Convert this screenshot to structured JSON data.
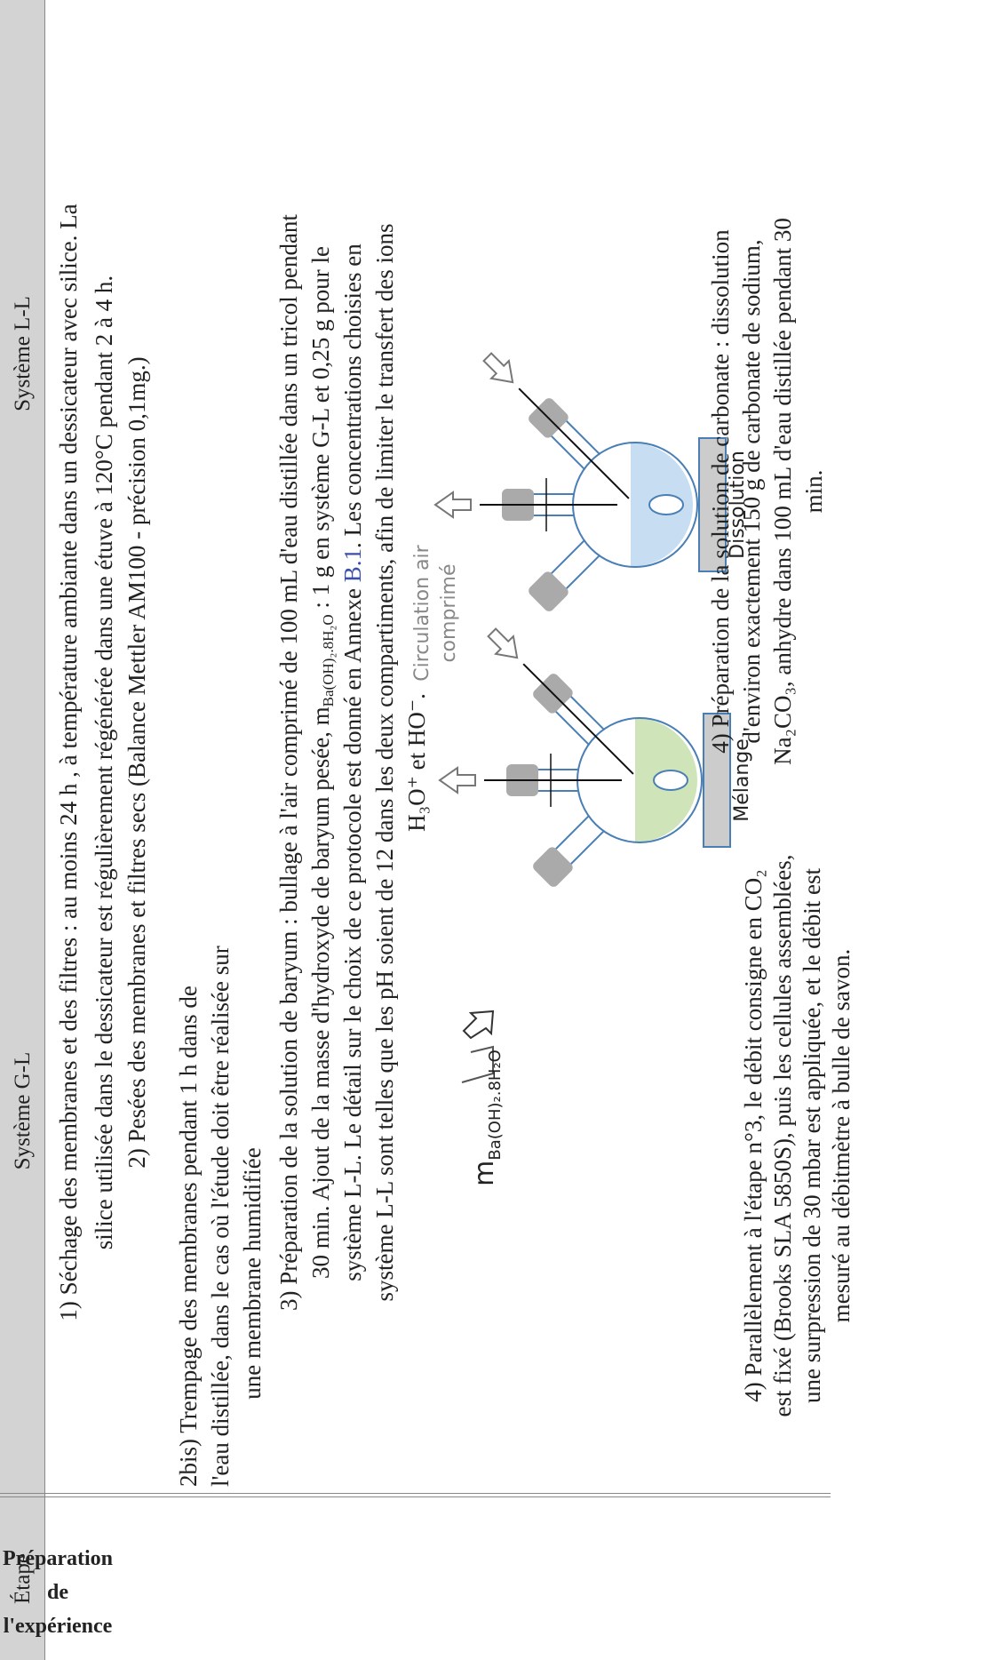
{
  "header": {
    "step": "Étape",
    "gl": "Système G-L",
    "ll": "Système L-L"
  },
  "step_label": [
    "Préparation",
    "de",
    "l'expérience"
  ],
  "p1": [
    "1) Séchage des membranes et des filtres : au moins 24 h , à température ambiante dans un dessicateur avec silice. La",
    "silice utilisée dans le dessicateur est régulièrement régénérée dans une étuve à 120°C pendant 2 à 4 h."
  ],
  "p2": [
    "2) Pesées des membranes et filtres secs (Balance Mettler AM100 - précision 0,1mg.)"
  ],
  "p2bis": [
    "2bis) Trempage des membranes pendant 1 h dans de",
    "l'eau distillée, dans le cas où l'étude doit être réalisée sur",
    "une membrane humidifiée"
  ],
  "p3": [
    "3) Préparation de la solution de baryum : bullage à l'air comprimé de 100 mL d'eau distillée dans un tricol pendant",
    [
      "30 min. Ajout de la masse d'hydroxyde de baryum pesée, m",
      "Ba(OH)₂.8H₂O",
      " : 1 g en système G-L et 0,25 g pour le"
    ],
    [
      "système L-L. Le détail sur le choix de ce protocole est donné en Annexe ",
      "B.1",
      ". Les concentrations choisies en"
    ],
    "système L-L sont telles que les pH soient de 12 dans les deux compartiments, afin de limiter le transfert des ions",
    "H₃O⁺ et HO⁻."
  ],
  "figure": {
    "mass_label": [
      "m",
      "Ba(OH)₂.8H₂O"
    ],
    "air_label": [
      "Circulation air",
      "comprimé"
    ],
    "mix_label": "Mélange",
    "dissolution_label": "Dissolution"
  },
  "p4_gl": [
    "4) Parallèlement à l'étape n°3, le débit consigne en CO₂",
    "est fixé (Brooks SLA 5850S), puis les cellules assemblées,",
    "une surpression de 30 mbar est appliquée, et le débit est",
    "mesuré au débitmètre à bulle de savon."
  ],
  "p4_ll": [
    "4) Préparation de la solution de carbonate : dissolution",
    "d'environ exactement 150 g de carbonate de sodium,",
    "Na₂CO₃, anhydre dans 100 mL d'eau distillée pendant 30",
    "min."
  ]
}
